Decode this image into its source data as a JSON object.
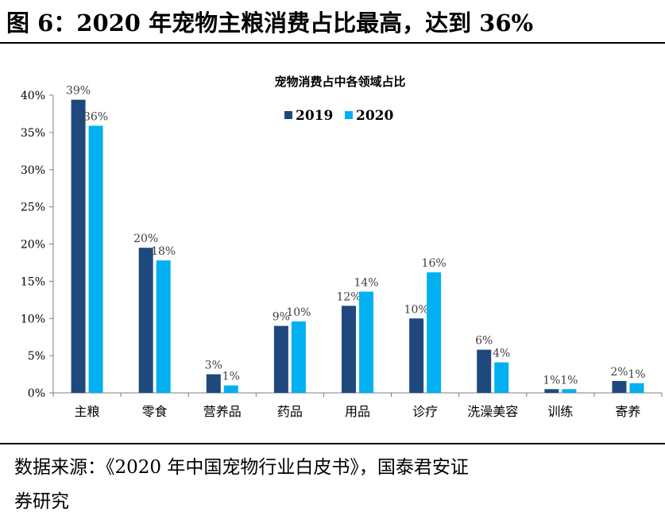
{
  "figure": {
    "title": "图 6：2020 年宠物主粮消费占比最高，达到 36%",
    "source_line1": "数据来源：《2020 年中国宠物行业白皮书》，国泰君安证",
    "source_line2": "券研究"
  },
  "chart_data": {
    "type": "bar",
    "title": "宠物消费占中各领域占比",
    "categories": [
      "主粮",
      "零食",
      "营养品",
      "药品",
      "用品",
      "诊疗",
      "洗澡美容",
      "训练",
      "寄养"
    ],
    "series": [
      {
        "name": "2019",
        "color": "#1F497D",
        "values": [
          39.4,
          19.5,
          2.5,
          9.0,
          11.7,
          10.0,
          5.8,
          0.5,
          1.6
        ],
        "labels": [
          "39%",
          "20%",
          "3%",
          "9%",
          "12%",
          "10%",
          "6%",
          "1%",
          "2%"
        ]
      },
      {
        "name": "2020",
        "color": "#00B0F0",
        "values": [
          35.9,
          17.8,
          1.0,
          9.6,
          13.6,
          16.2,
          4.1,
          0.5,
          1.3
        ],
        "labels": [
          "36%",
          "18%",
          "1%",
          "10%",
          "14%",
          "16%",
          "4%",
          "1%",
          "1%"
        ]
      }
    ],
    "yticks": [
      "0%",
      "5%",
      "10%",
      "15%",
      "20%",
      "25%",
      "30%",
      "35%",
      "40%"
    ],
    "ylim": [
      0,
      40
    ],
    "grid": false,
    "legend_position": "top"
  }
}
